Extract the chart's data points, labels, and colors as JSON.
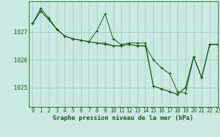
{
  "title": "Graphe pression niveau de la mer (hPa)",
  "background_color": "#c8e8e0",
  "grid_color": "#a0c8b8",
  "line_color": "#1a5c1a",
  "xlim": [
    -0.5,
    23
  ],
  "ylim": [
    1024.3,
    1028.1
  ],
  "xlabel_fontsize": 6.5,
  "ytick_fontsize": 6.0,
  "xtick_fontsize": 5.5,
  "series": [
    [
      1027.3,
      1027.75,
      1027.45,
      1027.1,
      1026.85,
      1026.75,
      1026.7,
      1026.65,
      1026.6,
      1026.55,
      1026.5,
      1026.5,
      1026.55,
      1026.5,
      1026.5,
      1026.0,
      1025.7,
      1025.5,
      1024.85,
      1024.8,
      1026.1,
      1025.35,
      1026.55,
      1026.55
    ],
    [
      1027.3,
      1027.75,
      1027.45,
      1027.1,
      1026.85,
      1026.75,
      1026.7,
      1026.65,
      1027.05,
      1027.65,
      1026.75,
      1026.55,
      1026.6,
      1026.6,
      1026.6,
      1025.05,
      1024.95,
      1024.85,
      1024.75,
      1025.0,
      1026.1,
      1025.35,
      1026.55,
      1026.55
    ],
    [
      1027.3,
      1027.85,
      1027.5,
      1027.1,
      1026.85,
      1026.75,
      1026.7,
      1026.65,
      1026.6,
      1026.6,
      1026.5,
      1026.5,
      1026.55,
      1026.5,
      1026.5,
      1025.05,
      1024.95,
      1024.85,
      1024.75,
      1025.0,
      1026.1,
      1025.35,
      1026.55,
      1026.55
    ]
  ],
  "xticks": [
    0,
    1,
    2,
    3,
    4,
    5,
    6,
    7,
    8,
    9,
    10,
    11,
    12,
    13,
    14,
    15,
    16,
    17,
    18,
    19,
    20,
    21,
    22,
    23
  ],
  "yticks": [
    1025,
    1026,
    1027
  ]
}
